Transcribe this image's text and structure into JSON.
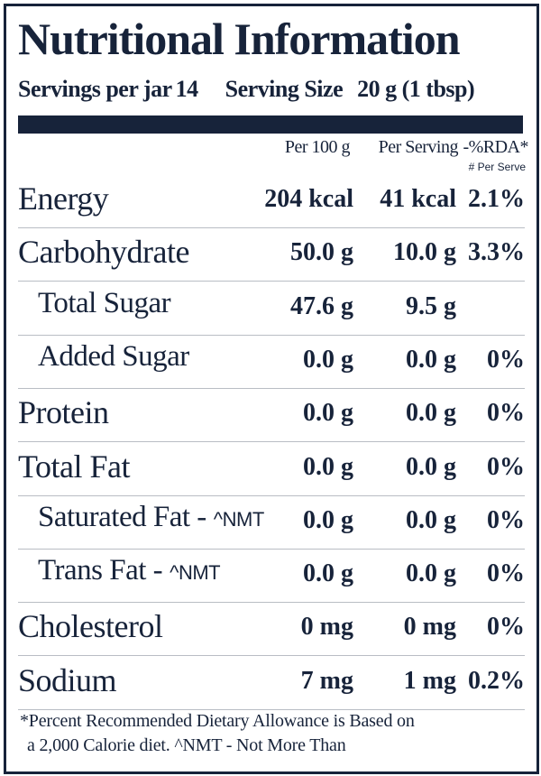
{
  "title": "Nutritional Information",
  "servings": {
    "label": "Servings per jar",
    "value": "14"
  },
  "serving_size": {
    "label": "Serving Size",
    "value": "20 g (1 tbsp)"
  },
  "columns": [
    "Per 100 g",
    "Per Serving",
    "-%RDA*"
  ],
  "rda_note": "# Per Serve",
  "rows": [
    {
      "name": "Energy",
      "cells": [
        "204 kcal",
        "41 kcal",
        "2.1%"
      ]
    },
    {
      "name": "Carbohydrate",
      "cells": [
        "50.0 g",
        "10.0 g",
        "3.3%"
      ]
    },
    {
      "name": "Total Sugar",
      "cells": [
        "47.6 g",
        "9.5 g"
      ]
    },
    {
      "name": "Added Sugar",
      "cells": [
        "0.0 g",
        "0.0 g",
        "0%"
      ]
    },
    {
      "name": "Protein",
      "cells": [
        "0.0 g",
        "0.0 g",
        "0%"
      ]
    },
    {
      "name": "Total Fat",
      "cells": [
        "0.0 g",
        "0.0 g",
        "0%"
      ]
    },
    {
      "name": "Saturated Fat -",
      "note": "^NMT",
      "cells": [
        "0.0 g",
        "0.0 g",
        "0%"
      ]
    },
    {
      "name": "Trans Fat -",
      "note": "^NMT",
      "cells": [
        "0.0 g",
        "0.0 g",
        "0%"
      ]
    },
    {
      "name": "Cholesterol",
      "cells": [
        "0 mg",
        "0 mg",
        "0%"
      ]
    },
    {
      "name": "Sodium",
      "cells": [
        "7 mg",
        "1 mg",
        "0.2%"
      ]
    }
  ],
  "footnote": [
    "*Percent Recommended Dietary Allowance is Based on",
    "a 2,000 Calorie diet. ^NMT - Not More Than"
  ]
}
